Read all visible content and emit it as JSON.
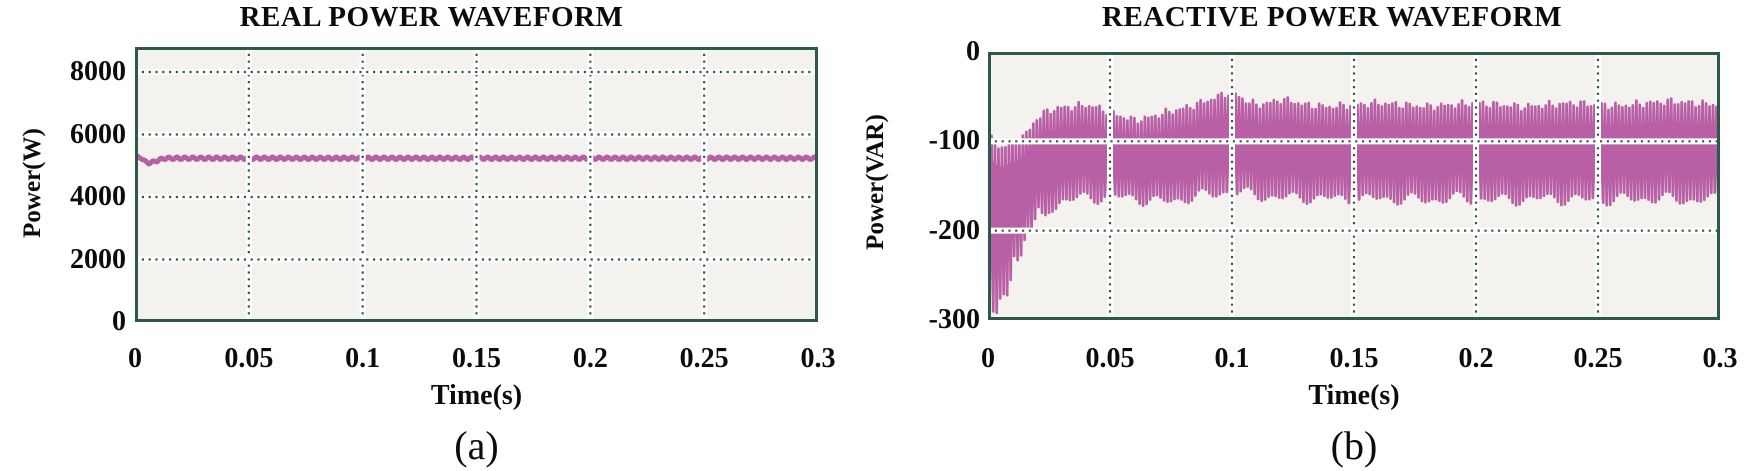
{
  "page": {
    "background": "#ffffff"
  },
  "figure": {
    "captions": [
      {
        "label": "(a)"
      },
      {
        "label": "(b)"
      }
    ]
  },
  "style_colors": {
    "frame": "#2d5a46",
    "grid_dots": "#2e5b48",
    "grid_halo": "#ffffff",
    "plot_background": "#f4f2ef",
    "waveform": "#b85fa6",
    "text": "#0c0c0c"
  },
  "chart_data": [
    {
      "id": "real-power-waveform",
      "type": "line",
      "title": "REAL POWER WAVEFORM",
      "xlabel": "Time(s)",
      "ylabel": "Power(W)",
      "xlim": [
        0,
        0.3
      ],
      "ylim": [
        0,
        8800
      ],
      "xticks": [
        0,
        0.05,
        0.1,
        0.15,
        0.2,
        0.25,
        0.3
      ],
      "xtick_labels": [
        "0",
        "0.05",
        "0.1",
        "0.15",
        "0.2",
        "0.25",
        "0.3"
      ],
      "yticks": [
        0,
        2000,
        4000,
        6000,
        8000
      ],
      "ytick_labels": [
        "0",
        "2000",
        "4000",
        "6000",
        "8000"
      ],
      "grid": "dotted",
      "legend": "none",
      "line_color": "#b85fa6",
      "series": [
        {
          "name": "real power",
          "description": "Real power starts near 5350 W, dips briefly to about 5080 W, then holds steady near 5240 W with small ripple for the full 0 to 0.3 s window",
          "start_value_w": 5350,
          "dip_value_w": 5080,
          "dip_time_s": 0.006,
          "settle_time_s": 0.013,
          "steady_value_w": 5240,
          "ripple_amplitude_w": 40,
          "ripple_period_s": 0.0035
        }
      ]
    },
    {
      "id": "reactive-power-waveform",
      "type": "oscillatory-envelope",
      "title": "REACTIVE POWER WAVEFORM",
      "xlabel": "Time(s)",
      "ylabel": "Power(VAR)",
      "xlim": [
        0,
        0.3
      ],
      "ylim": [
        -300,
        0
      ],
      "xticks": [
        0,
        0.05,
        0.1,
        0.15,
        0.2,
        0.25,
        0.3
      ],
      "xtick_labels": [
        "0",
        "0.05",
        "0.1",
        "0.15",
        "0.2",
        "0.25",
        "0.3"
      ],
      "yticks": [
        0,
        -100,
        -200,
        -300
      ],
      "ytick_labels": [
        "0",
        "-100",
        "-200",
        "-300"
      ],
      "grid": "dotted",
      "legend": "none",
      "line_color": "#b85fa6",
      "series": [
        {
          "name": "reactive power",
          "description": "High-frequency oscillating reactive power; initial spikes reach about -280 VAR, envelope settles into a band of roughly -55 to -165 VAR, with the upper envelope peaking near -45 VAR around t = 0.1 s",
          "spike_period_s": 0.00143,
          "envelope_t_s": [
            0,
            0.002,
            0.005,
            0.01,
            0.015,
            0.02,
            0.025,
            0.03,
            0.035,
            0.04,
            0.045,
            0.05,
            0.055,
            0.06,
            0.065,
            0.07,
            0.075,
            0.08,
            0.085,
            0.09,
            0.095,
            0.1,
            0.105,
            0.11,
            0.115,
            0.12,
            0.125,
            0.13,
            0.14,
            0.15,
            0.16,
            0.17,
            0.18,
            0.19,
            0.2,
            0.21,
            0.22,
            0.23,
            0.24,
            0.25,
            0.26,
            0.27,
            0.28,
            0.29,
            0.3
          ],
          "envelope_top_var": [
            -95,
            -100,
            -108,
            -102,
            -95,
            -75,
            -66,
            -63,
            -62,
            -60,
            -63,
            -68,
            -73,
            -77,
            -75,
            -71,
            -67,
            -64,
            -60,
            -55,
            -50,
            -45,
            -54,
            -60,
            -58,
            -54,
            -56,
            -60,
            -62,
            -60,
            -58,
            -60,
            -62,
            -60,
            -58,
            -60,
            -62,
            -60,
            -58,
            -60,
            -61,
            -58,
            -56,
            -58,
            -60
          ],
          "envelope_bottom_var": [
            -280,
            -276,
            -262,
            -228,
            -196,
            -181,
            -171,
            -166,
            -164,
            -162,
            -162,
            -161,
            -162,
            -163,
            -165,
            -167,
            -166,
            -163,
            -161,
            -159,
            -157,
            -155,
            -158,
            -160,
            -161,
            -162,
            -163,
            -162,
            -163,
            -164,
            -163,
            -164,
            -165,
            -163,
            -164,
            -165,
            -164,
            -163,
            -164,
            -165,
            -164,
            -163,
            -164,
            -165,
            -164
          ],
          "spike_jitter_var": {
            "top": 5,
            "bottom": 8,
            "transient_extra": 28,
            "transient_end_s": 0.03
          },
          "solid_core_offset_var": {
            "from_top": 22,
            "from_bottom": 48
          }
        }
      ]
    }
  ]
}
